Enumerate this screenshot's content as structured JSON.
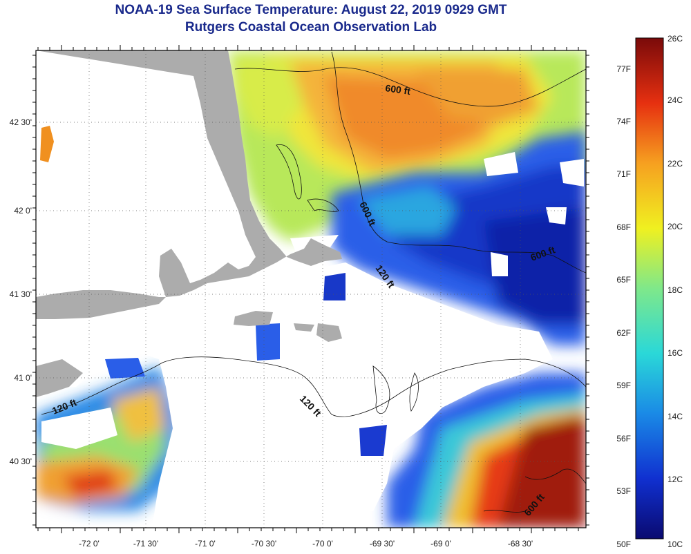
{
  "title": {
    "line1": "NOAA-19 Sea Surface Temperature:  August 22, 2019 0929 GMT",
    "line2": "Rutgers Coastal Ocean Observation Lab"
  },
  "axes": {
    "longitude_labels": [
      "-72 0'",
      "-71 30'",
      "-71 0'",
      "-70 30'",
      "-70 0'",
      "-69 30'",
      "-69 0'",
      "-68 30'"
    ],
    "latitude_labels": [
      "42 30'",
      "42 0'",
      "41 30'",
      "41 0'",
      "40 30'"
    ]
  },
  "contour_labels": [
    "600 ft",
    "600 ft",
    "600 ft",
    "600 ft",
    "120 ft",
    "120 ft",
    "120 ft"
  ],
  "colorbar": {
    "celsius": [
      "26C",
      "24C",
      "22C",
      "20C",
      "18C",
      "16C",
      "14C",
      "12C",
      "10C"
    ],
    "fahrenheit": [
      "77F",
      "74F",
      "71F",
      "68F",
      "65F",
      "62F",
      "59F",
      "56F",
      "53F",
      "50F"
    ],
    "colors": [
      "#0a0a70",
      "#1030d0",
      "#1a8ae6",
      "#2ad8d8",
      "#7fe88a",
      "#f0f020",
      "#f6a020",
      "#e63010",
      "#7a0a0a"
    ]
  },
  "colors": {
    "land": "#acacac",
    "cloud": "#ffffff",
    "title": "#1a2a8c"
  }
}
